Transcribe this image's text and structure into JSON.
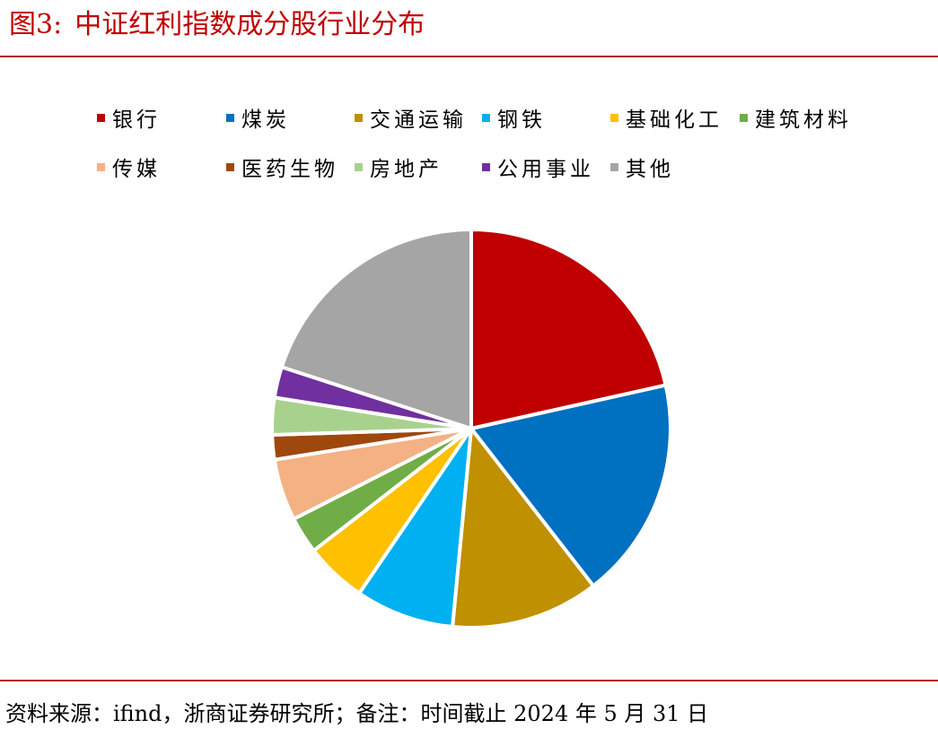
{
  "figure": {
    "number": "图3:",
    "caption": "中证红利指数成分股行业分布"
  },
  "source_note": "资料来源：ifind，浙商证券研究所；备注：时间截止 2024 年 5 月 31 日",
  "chart_data": {
    "type": "pie",
    "title": "",
    "legend_position": "top",
    "categories": [
      "银行",
      "煤炭",
      "交通运输",
      "钢铁",
      "基础化工",
      "建筑材料",
      "传媒",
      "医药生物",
      "房地产",
      "公用事业",
      "其他"
    ],
    "values": [
      21.5,
      18.0,
      12.0,
      8.0,
      5.0,
      3.0,
      5.0,
      2.0,
      3.0,
      2.5,
      20.0
    ],
    "colors": [
      "#c00000",
      "#0070c0",
      "#bf9000",
      "#00b0f0",
      "#ffc000",
      "#70ad47",
      "#f4b183",
      "#9e480e",
      "#a9d18e",
      "#7030a0",
      "#a5a5a5"
    ]
  }
}
